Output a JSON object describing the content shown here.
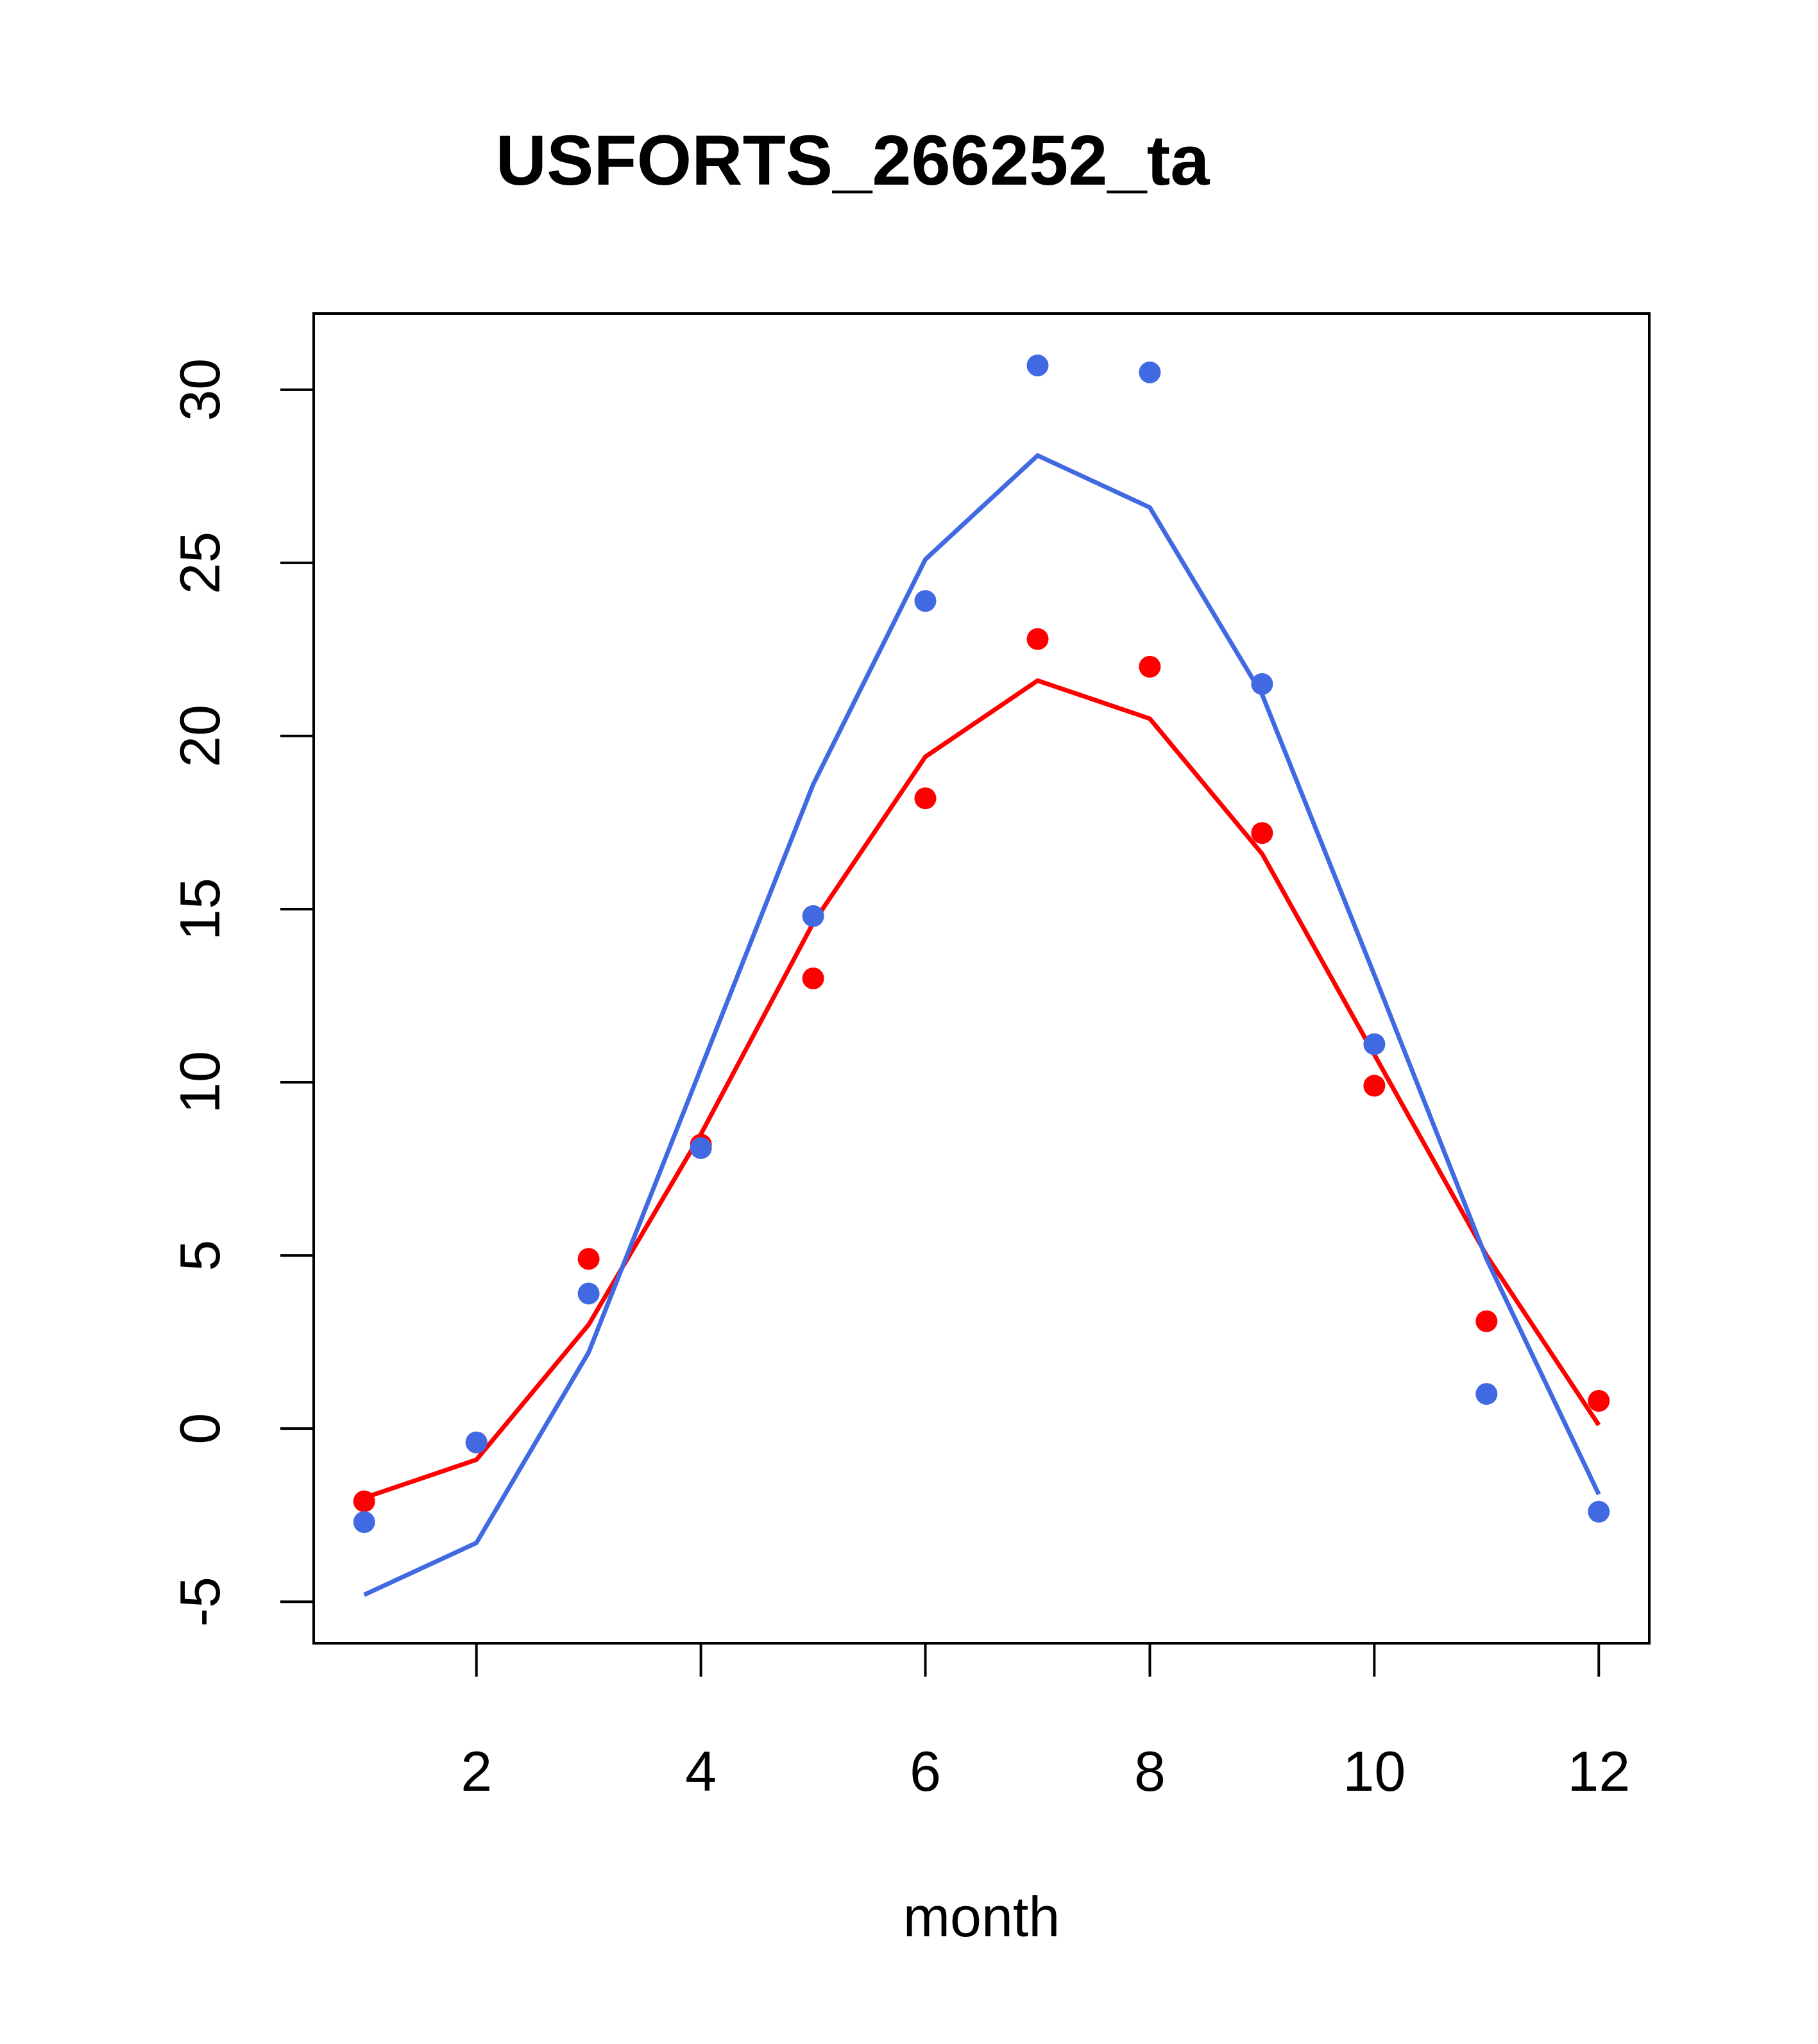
{
  "chart_data": {
    "type": "line",
    "title": "USFORTS_266252_ta",
    "xlabel": "month",
    "ylabel": "",
    "xlim": [
      0.55,
      12.45
    ],
    "ylim": [
      -6.2,
      32.2
    ],
    "x_ticks": [
      2,
      4,
      6,
      8,
      10,
      12
    ],
    "y_ticks": [
      -5,
      0,
      5,
      10,
      15,
      20,
      25,
      30
    ],
    "grid": false,
    "legend": "none",
    "x": [
      1,
      2,
      3,
      4,
      5,
      6,
      7,
      8,
      9,
      10,
      11,
      12
    ],
    "series": [
      {
        "color": "#ff0000",
        "line_values": [
          -2.0,
          -0.9,
          3.0,
          8.5,
          14.6,
          19.4,
          21.6,
          20.5,
          16.6,
          10.8,
          5.0,
          0.1
        ],
        "point_values": [
          -2.1,
          -0.4,
          4.9,
          8.2,
          13.0,
          18.2,
          22.8,
          22.0,
          17.2,
          9.9,
          3.1,
          0.8
        ]
      },
      {
        "color": "#4169e1",
        "line_values": [
          -4.8,
          -3.3,
          2.2,
          10.4,
          18.6,
          25.1,
          28.1,
          26.6,
          21.2,
          13.1,
          4.9,
          -1.9
        ],
        "point_values": [
          -2.7,
          -0.4,
          3.9,
          8.1,
          14.8,
          23.9,
          30.7,
          30.5,
          21.5,
          11.1,
          1.0,
          -2.4
        ]
      }
    ]
  }
}
